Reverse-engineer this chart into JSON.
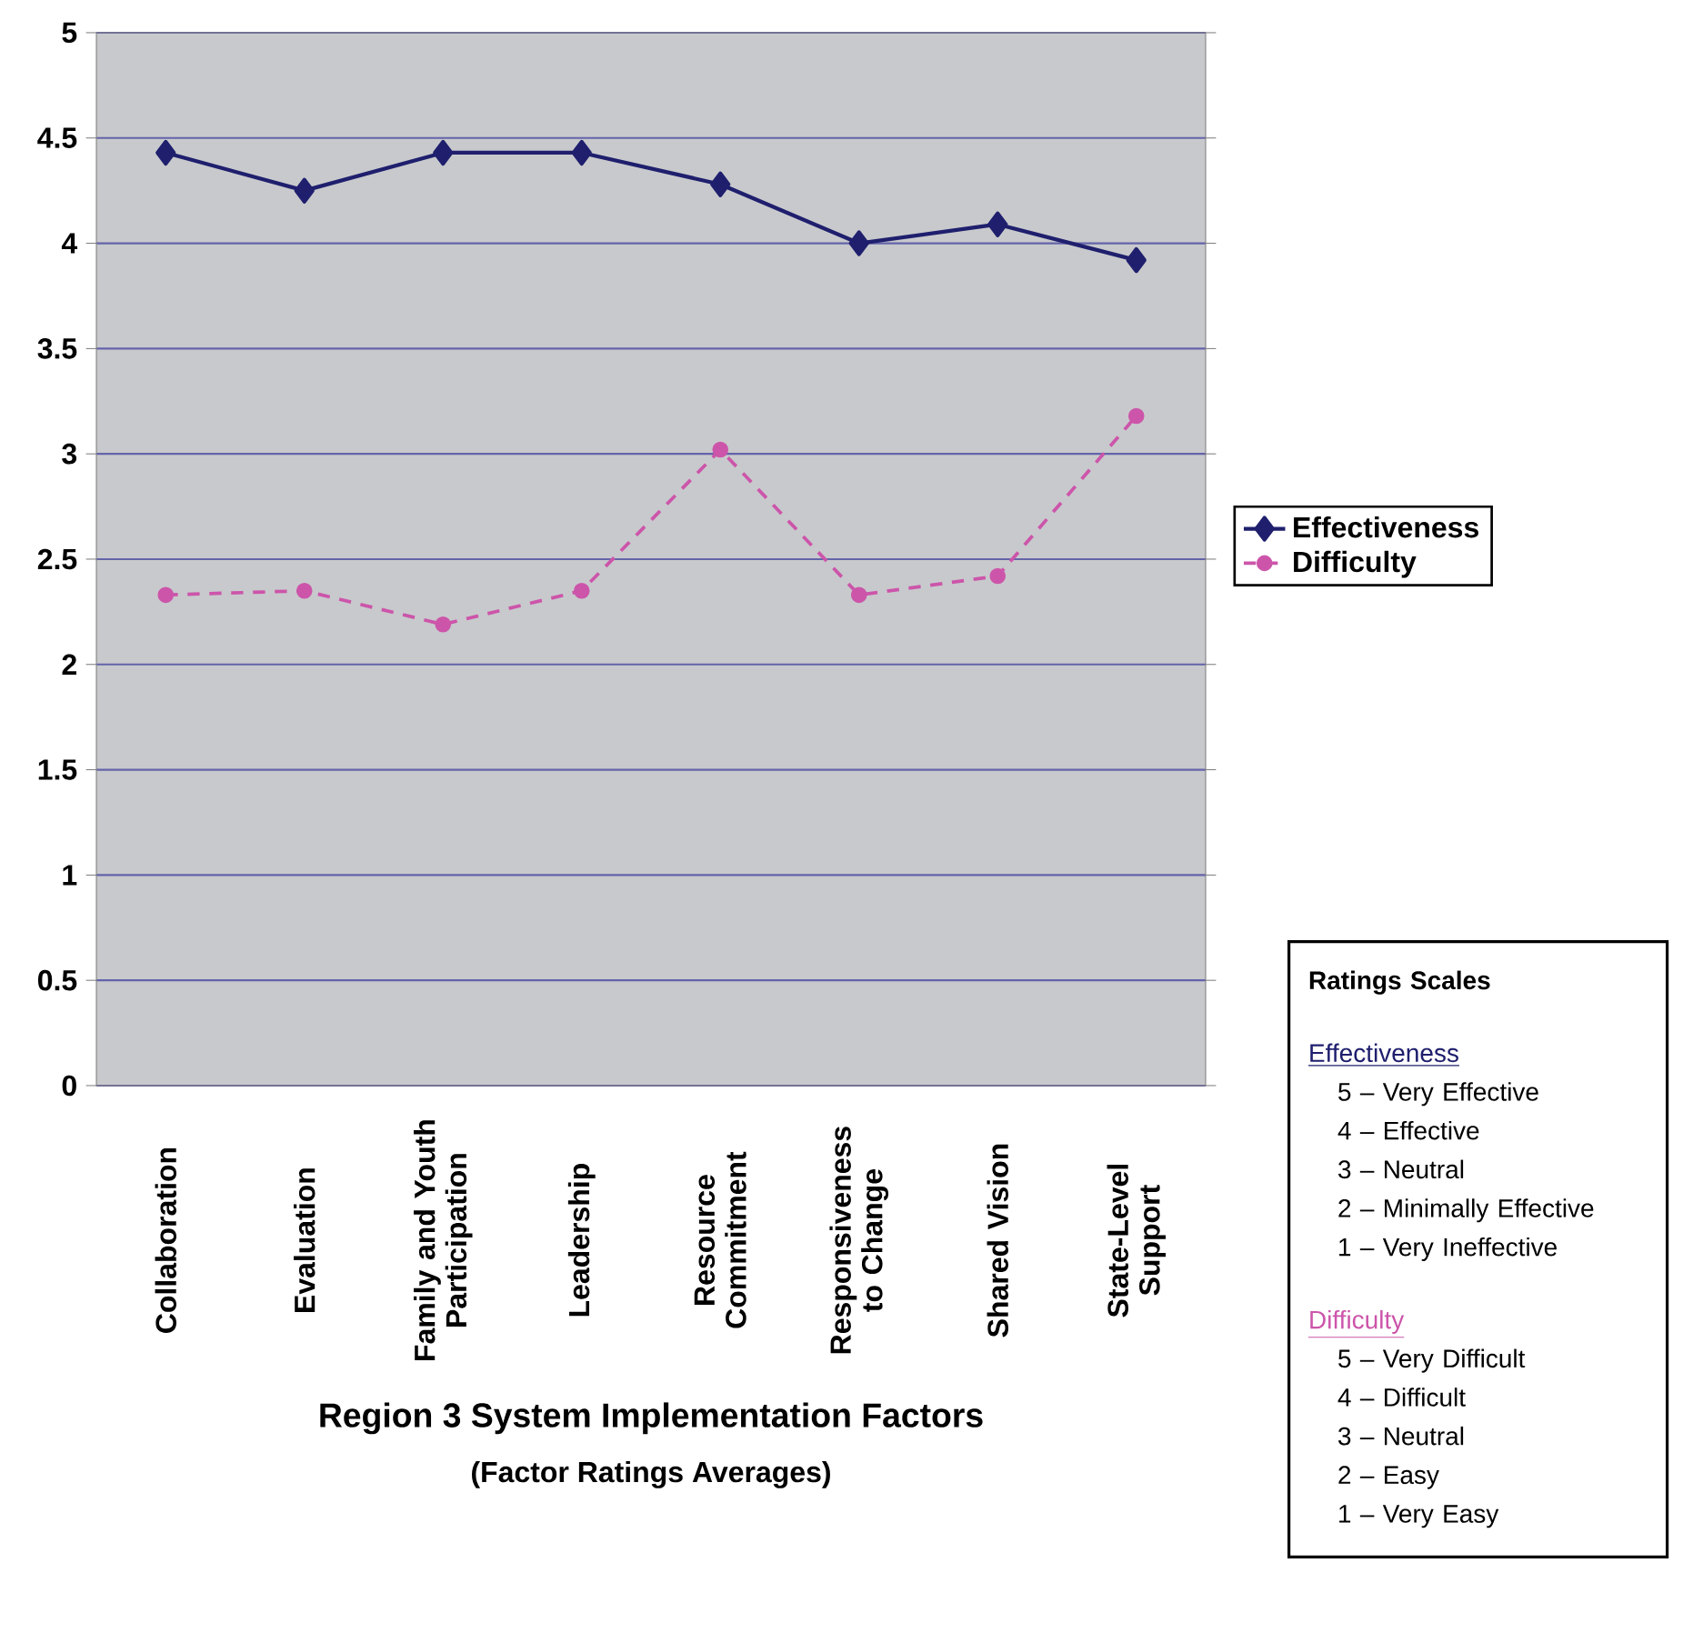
{
  "chart_data": {
    "type": "line",
    "xlabel": "Region 3 System Implementation Factors",
    "subtitle": "(Factor Ratings Averages)",
    "categories": [
      "Collaboration",
      "Evaluation",
      "Family and Youth Participation",
      "Leadership",
      "Resource Commitment",
      "Responsiveness to Change",
      "Shared Vision",
      "State-Level Support"
    ],
    "series": [
      {
        "name": "Effectiveness",
        "color": "#1f1f6e",
        "marker": "diamond",
        "line_style": "solid",
        "values": [
          4.43,
          4.25,
          4.43,
          4.43,
          4.28,
          4.0,
          4.09,
          3.92
        ]
      },
      {
        "name": "Difficulty",
        "color": "#cc55aa",
        "marker": "circle",
        "line_style": "dashed",
        "values": [
          2.33,
          2.35,
          2.19,
          2.35,
          3.02,
          2.33,
          2.42,
          3.18
        ]
      }
    ],
    "ylim": [
      0,
      5
    ],
    "yticks": [
      0,
      0.5,
      1,
      1.5,
      2,
      2.5,
      3,
      3.5,
      4,
      4.5,
      5
    ],
    "grid": "y",
    "legend": "right",
    "annotations": [
      "Ratings Scales",
      "Effectiveness",
      "5 – Very Effective",
      "4 – Effective",
      "3 – Neutral",
      "2 – Minimally Effective",
      "1 – Very Ineffective",
      "Difficulty",
      "5 – Very Difficult",
      "4 – Difficult",
      "3 – Neutral",
      "2 – Easy",
      "1 – Very Easy"
    ]
  }
}
